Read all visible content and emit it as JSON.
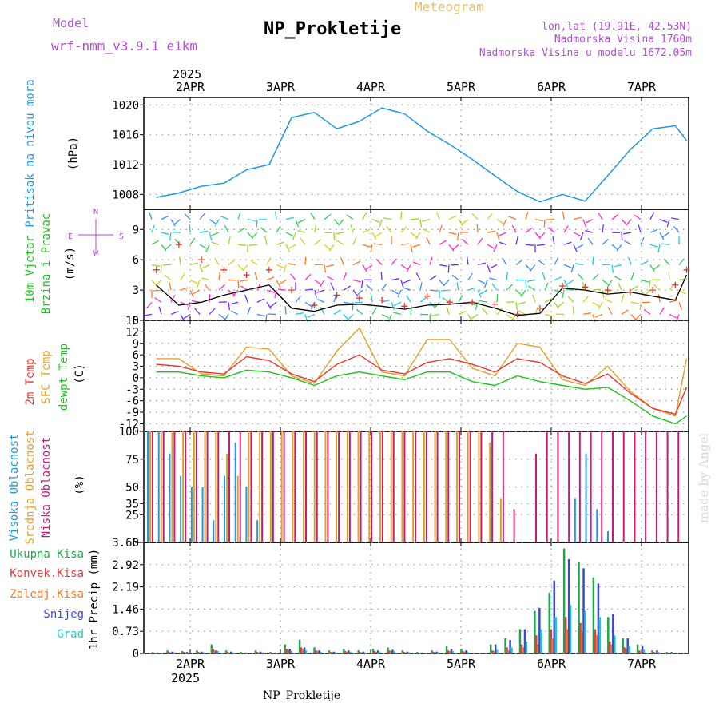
{
  "header": {
    "model_label": "Model",
    "model_name": "wrf-nmm_v3.9.1 e1km",
    "meteogram_label": "Meteogram",
    "station": "NP_Prokletije",
    "lonlat": "lon,lat (19.91E, 42.53N)",
    "elevation": "Nadmorska Visina 1760m",
    "model_elevation": "Nadmorska Visina u modelu 1672.05m",
    "footer_station": "NP_Prokletije",
    "watermark": "made by Angel"
  },
  "colors": {
    "pressure": "#1e9be0",
    "wind_speed": "#000000",
    "gust": "#e0362b",
    "temp2m": "#e8372d",
    "sfc_temp": "#e0a227",
    "dewpt": "#1cc41c",
    "cloud_high": "#1e9be0",
    "cloud_mid": "#e0a227",
    "cloud_low": "#c81a78",
    "rain_total": "#1aa84a",
    "rain_conv": "#e83a3a",
    "rain_freezing": "#f0782a",
    "snow": "#3a4ad0",
    "hail": "#20c8c8",
    "purple_text": "#b04fd0",
    "gold_text": "#e6c06a"
  },
  "chart_data": [
    {
      "type": "line",
      "panel": "pressure",
      "title": "",
      "ylabel_lines": [
        "Pritisak na nivou mora",
        "(hPa)"
      ],
      "ylim": [
        1006,
        1021
      ],
      "yticks": [
        "1020",
        "1016",
        "1012",
        "1008"
      ],
      "x_start": "2025-04-01 15:00",
      "x_end": "2025-04-07 12:00",
      "x": [
        "2025-04-01 15:00",
        "2025-04-01 21:00",
        "2025-04-02 03:00",
        "2025-04-02 09:00",
        "2025-04-02 15:00",
        "2025-04-02 21:00",
        "2025-04-03 03:00",
        "2025-04-03 09:00",
        "2025-04-03 15:00",
        "2025-04-03 21:00",
        "2025-04-04 03:00",
        "2025-04-04 09:00",
        "2025-04-04 15:00",
        "2025-04-04 21:00",
        "2025-04-05 03:00",
        "2025-04-05 09:00",
        "2025-04-05 15:00",
        "2025-04-05 21:00",
        "2025-04-06 03:00",
        "2025-04-06 09:00",
        "2025-04-06 15:00",
        "2025-04-06 21:00",
        "2025-04-07 03:00",
        "2025-04-07 09:00",
        "2025-04-07 12:00"
      ],
      "series": [
        {
          "values": [
            1007.6,
            1008.2,
            1009.1,
            1009.5,
            1011.3,
            1012.0,
            1018.3,
            1019.0,
            1016.8,
            1017.8,
            1019.6,
            1018.8,
            1016.5,
            1014.7,
            1012.7,
            1010.5,
            1008.4,
            1007.0,
            1008.0,
            1007.1,
            1010.5,
            1014.0,
            1016.8,
            1017.2,
            1015.2
          ]
        }
      ]
    },
    {
      "type": "line",
      "panel": "wind",
      "title": "",
      "ylabel_lines": [
        "10m Vjetar",
        "Brzina i Pravac",
        "(m/s)"
      ],
      "compass": [
        "N",
        "W",
        "E",
        "S"
      ],
      "ylim": [
        0,
        11
      ],
      "yticks": [
        "9",
        "6",
        "3",
        "0"
      ],
      "x": [
        "2025-04-01 15:00",
        "2025-04-01 21:00",
        "2025-04-02 03:00",
        "2025-04-02 09:00",
        "2025-04-02 15:00",
        "2025-04-02 21:00",
        "2025-04-03 03:00",
        "2025-04-03 09:00",
        "2025-04-03 15:00",
        "2025-04-03 21:00",
        "2025-04-04 03:00",
        "2025-04-04 09:00",
        "2025-04-04 15:00",
        "2025-04-04 21:00",
        "2025-04-05 03:00",
        "2025-04-05 09:00",
        "2025-04-05 15:00",
        "2025-04-05 21:00",
        "2025-04-06 03:00",
        "2025-04-06 09:00",
        "2025-04-06 15:00",
        "2025-04-06 21:00",
        "2025-04-07 03:00",
        "2025-04-07 09:00",
        "2025-04-07 12:00"
      ],
      "series": [
        {
          "values": [
            3.5,
            1.5,
            1.8,
            2.5,
            3.0,
            3.5,
            1.2,
            0.9,
            1.5,
            1.6,
            1.4,
            1.1,
            1.5,
            1.6,
            1.8,
            1.2,
            0.5,
            0.7,
            3.2,
            3.0,
            2.6,
            2.8,
            2.4,
            2.0,
            4.5
          ]
        },
        {
          "values": [
            5.0,
            7.5,
            6.0,
            5.0,
            4.5,
            5.0,
            3.0,
            1.5,
            2.5,
            2.2,
            2.0,
            1.4,
            2.4,
            1.8,
            1.8,
            1.6,
            0.6,
            1.2,
            3.4,
            3.3,
            3.0,
            2.8,
            3.0,
            3.5,
            5.0
          ]
        }
      ]
    },
    {
      "type": "line",
      "panel": "temperature",
      "title": "",
      "ylabel_lines": [
        "2m Temp",
        "SFC Temp",
        "dewpt Temp",
        "(C)"
      ],
      "ylim": [
        -14,
        15
      ],
      "yticks": [
        "15",
        "12",
        "9",
        "6",
        "3",
        "0",
        "-3",
        "-6",
        "-9",
        "-12"
      ],
      "x": [
        "2025-04-01 15:00",
        "2025-04-01 21:00",
        "2025-04-02 03:00",
        "2025-04-02 09:00",
        "2025-04-02 15:00",
        "2025-04-02 21:00",
        "2025-04-03 03:00",
        "2025-04-03 09:00",
        "2025-04-03 15:00",
        "2025-04-03 21:00",
        "2025-04-04 03:00",
        "2025-04-04 09:00",
        "2025-04-04 15:00",
        "2025-04-04 21:00",
        "2025-04-05 03:00",
        "2025-04-05 09:00",
        "2025-04-05 15:00",
        "2025-04-05 21:00",
        "2025-04-06 03:00",
        "2025-04-06 09:00",
        "2025-04-06 15:00",
        "2025-04-06 21:00",
        "2025-04-07 03:00",
        "2025-04-07 09:00",
        "2025-04-07 12:00"
      ],
      "series": [
        {
          "values": [
            3.5,
            3.0,
            1.5,
            1.0,
            5.5,
            4.5,
            1.0,
            -1.0,
            3.5,
            6.0,
            2.0,
            1.0,
            4.0,
            5.0,
            3.5,
            1.5,
            5.0,
            4.0,
            0.5,
            -1.5,
            1.0,
            -4.0,
            -8.0,
            -9.5,
            -2.5
          ]
        },
        {
          "values": [
            5.0,
            5.0,
            1.0,
            0.5,
            8.0,
            7.5,
            0.5,
            -1.5,
            7.0,
            13.0,
            1.5,
            0.5,
            10.0,
            10.0,
            2.5,
            0.5,
            9.0,
            8.0,
            -0.5,
            -2.0,
            3.0,
            -3.5,
            -8.0,
            -10.0,
            5.0
          ]
        },
        {
          "values": [
            1.5,
            1.5,
            0.5,
            0.0,
            2.0,
            1.5,
            0.0,
            -2.0,
            0.5,
            1.5,
            0.5,
            -0.5,
            1.5,
            1.5,
            -1.0,
            -2.0,
            0.5,
            -1.0,
            -2.0,
            -3.0,
            -2.5,
            -6.0,
            -10.0,
            -12.0,
            -10.0
          ]
        }
      ]
    },
    {
      "type": "bar",
      "panel": "clouds",
      "title": "",
      "ylabel_lines": [
        "Visoka Oblacnost",
        "Srednja Oblacnost",
        "Niska Oblacnost",
        "(%)"
      ],
      "ylim": [
        0,
        100
      ],
      "yticks": [
        "100",
        "75",
        "50",
        "35",
        "25",
        "0"
      ],
      "series": [
        {
          "values": [
            100,
            100,
            80,
            60,
            50,
            50,
            20,
            60,
            90,
            50,
            20,
            0,
            0,
            0,
            0,
            0,
            0,
            0,
            0,
            0,
            0,
            0,
            0,
            0,
            0,
            0,
            0,
            0,
            0,
            0,
            0,
            0,
            0,
            0,
            0,
            0,
            0,
            0,
            0,
            40,
            80,
            30,
            10,
            0,
            0,
            0,
            0,
            0,
            0
          ]
        },
        {
          "values": [
            100,
            100,
            100,
            100,
            100,
            100,
            100,
            80,
            60,
            100,
            100,
            100,
            100,
            100,
            100,
            100,
            100,
            100,
            100,
            100,
            100,
            100,
            100,
            100,
            100,
            100,
            100,
            100,
            100,
            100,
            100,
            90,
            40,
            0,
            0,
            0,
            0,
            0,
            0,
            0,
            0,
            0,
            0,
            0,
            0,
            0,
            0,
            0,
            0
          ]
        },
        {
          "values": [
            100,
            100,
            100,
            100,
            100,
            100,
            100,
            100,
            100,
            100,
            100,
            100,
            100,
            100,
            100,
            100,
            100,
            100,
            100,
            100,
            100,
            100,
            100,
            100,
            100,
            100,
            100,
            100,
            100,
            100,
            100,
            100,
            100,
            30,
            0,
            80,
            100,
            100,
            100,
            100,
            100,
            100,
            100,
            100,
            100,
            100,
            100,
            100,
            100
          ]
        }
      ]
    },
    {
      "type": "bar",
      "panel": "precipitation",
      "title": "",
      "legend": [
        "Ukupna Kisa",
        "Konvek.Kisa",
        "Zaledj.Kisa",
        "Snijeg",
        "Grad"
      ],
      "ylabel": "1hr Precip (mm)",
      "ylim": [
        0,
        3.65
      ],
      "yticks": [
        "3.65",
        "2.92",
        "2.19",
        "1.46",
        "0.73",
        "0"
      ],
      "series": [
        {
          "values": [
            0.05,
            0.1,
            0.08,
            0.1,
            0.3,
            0.1,
            0.05,
            0.1,
            0.05,
            0.3,
            0.45,
            0.2,
            0.1,
            0.15,
            0.1,
            0.15,
            0.2,
            0.1,
            0.05,
            0.1,
            0.25,
            0.15,
            0,
            0.3,
            0.5,
            0.8,
            1.4,
            2.0,
            3.45,
            3.0,
            2.5,
            1.2,
            0.5,
            0.3,
            0.1,
            0.05
          ]
        },
        {
          "values": [
            0.02,
            0.05,
            0.05,
            0.05,
            0.15,
            0.05,
            0.02,
            0.05,
            0.03,
            0.15,
            0.2,
            0.1,
            0.05,
            0.08,
            0.05,
            0.08,
            0.1,
            0.05,
            0.02,
            0.05,
            0.1,
            0.08,
            0,
            0.1,
            0.2,
            0.3,
            0.6,
            0.8,
            1.2,
            1.0,
            0.8,
            0.4,
            0.2,
            0.1,
            0.05,
            0.02
          ]
        },
        {
          "values": [
            0.02,
            0.03,
            0.03,
            0.03,
            0.1,
            0.03,
            0.02,
            0.03,
            0.02,
            0.1,
            0.15,
            0.08,
            0.04,
            0.05,
            0.03,
            0.05,
            0.08,
            0.03,
            0.02,
            0.03,
            0.08,
            0.05,
            0,
            0.08,
            0.1,
            0.2,
            0.3,
            0.5,
            0.8,
            0.7,
            0.6,
            0.3,
            0.15,
            0.08,
            0.03,
            0.02
          ]
        },
        {
          "values": [
            0.03,
            0.06,
            0.05,
            0.06,
            0.1,
            0.06,
            0.03,
            0.06,
            0.03,
            0.15,
            0.2,
            0.1,
            0.06,
            0.1,
            0.06,
            0.1,
            0.12,
            0.06,
            0.03,
            0.06,
            0.15,
            0.1,
            0,
            0.3,
            0.45,
            0.8,
            1.5,
            2.4,
            3.1,
            2.8,
            2.3,
            1.3,
            0.5,
            0.25,
            0.1,
            0.05
          ]
        },
        {
          "values": [
            0.02,
            0.04,
            0.03,
            0.04,
            0.08,
            0.04,
            0.02,
            0.04,
            0.02,
            0.08,
            0.1,
            0.06,
            0.04,
            0.06,
            0.04,
            0.06,
            0.08,
            0.04,
            0.02,
            0.04,
            0.08,
            0.06,
            0,
            0.12,
            0.2,
            0.4,
            0.8,
            1.2,
            1.6,
            1.4,
            1.2,
            0.6,
            0.25,
            0.12,
            0.05,
            0.02
          ]
        }
      ]
    }
  ],
  "x_axis": {
    "year": "2025",
    "day_labels": [
      "2APR",
      "3APR",
      "4APR",
      "5APR",
      "6APR",
      "7APR"
    ]
  }
}
